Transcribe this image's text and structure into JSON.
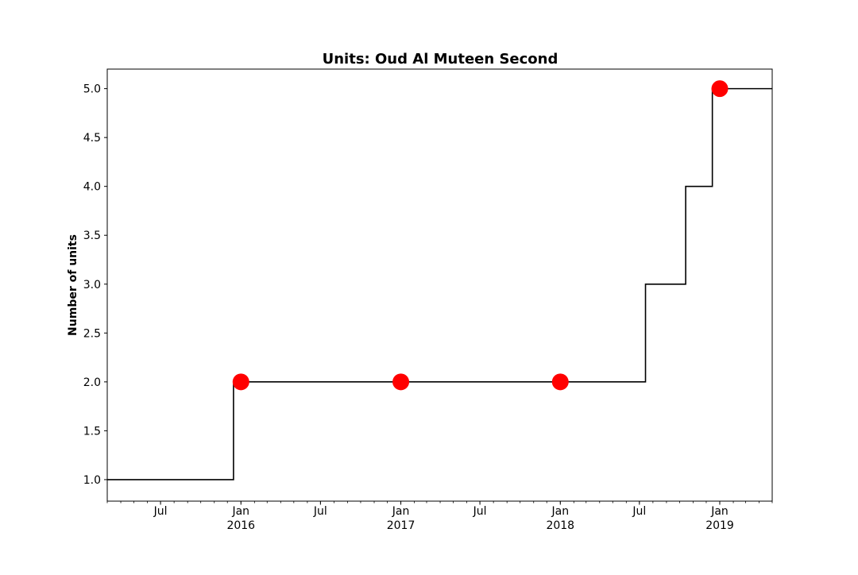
{
  "chart_data": {
    "type": "line",
    "title": "Units: Oud Al Muteen Second",
    "xlabel": "",
    "ylabel": "Number of units",
    "xlim": [
      "2015-03-01",
      "2019-05-01"
    ],
    "ylim": [
      0.78,
      5.2
    ],
    "grid": false,
    "legend": "none",
    "step_series": {
      "drawstyle": "steps-post",
      "color": "#000000",
      "points": [
        {
          "x": "2015-03-01",
          "y": 1
        },
        {
          "x": "2015-12-15",
          "y": 2
        },
        {
          "x": "2018-07-15",
          "y": 3
        },
        {
          "x": "2018-10-15",
          "y": 4
        },
        {
          "x": "2018-12-15",
          "y": 5
        },
        {
          "x": "2019-05-01",
          "y": 5
        }
      ]
    },
    "markers": {
      "color": "#ff0000",
      "points": [
        {
          "x": "2016-01-01",
          "y": 2
        },
        {
          "x": "2017-01-01",
          "y": 2
        },
        {
          "x": "2018-01-01",
          "y": 2
        },
        {
          "x": "2019-01-01",
          "y": 5
        }
      ]
    },
    "yticks": [
      {
        "value": 1.0,
        "label": "1.0"
      },
      {
        "value": 1.5,
        "label": "1.5"
      },
      {
        "value": 2.0,
        "label": "2.0"
      },
      {
        "value": 2.5,
        "label": "2.5"
      },
      {
        "value": 3.0,
        "label": "3.0"
      },
      {
        "value": 3.5,
        "label": "3.5"
      },
      {
        "value": 4.0,
        "label": "4.0"
      },
      {
        "value": 4.5,
        "label": "4.5"
      },
      {
        "value": 5.0,
        "label": "5.0"
      }
    ],
    "xticks": [
      {
        "date": "2015-07-01",
        "label": "Jul"
      },
      {
        "date": "2016-01-01",
        "label": "Jan",
        "sublabel": "2016"
      },
      {
        "date": "2016-07-01",
        "label": "Jul"
      },
      {
        "date": "2017-01-01",
        "label": "Jan",
        "sublabel": "2017"
      },
      {
        "date": "2017-07-01",
        "label": "Jul"
      },
      {
        "date": "2018-01-01",
        "label": "Jan",
        "sublabel": "2018"
      },
      {
        "date": "2018-07-01",
        "label": "Jul"
      },
      {
        "date": "2019-01-01",
        "label": "Jan",
        "sublabel": "2019"
      }
    ],
    "minor_x_ticks": "monthly"
  }
}
